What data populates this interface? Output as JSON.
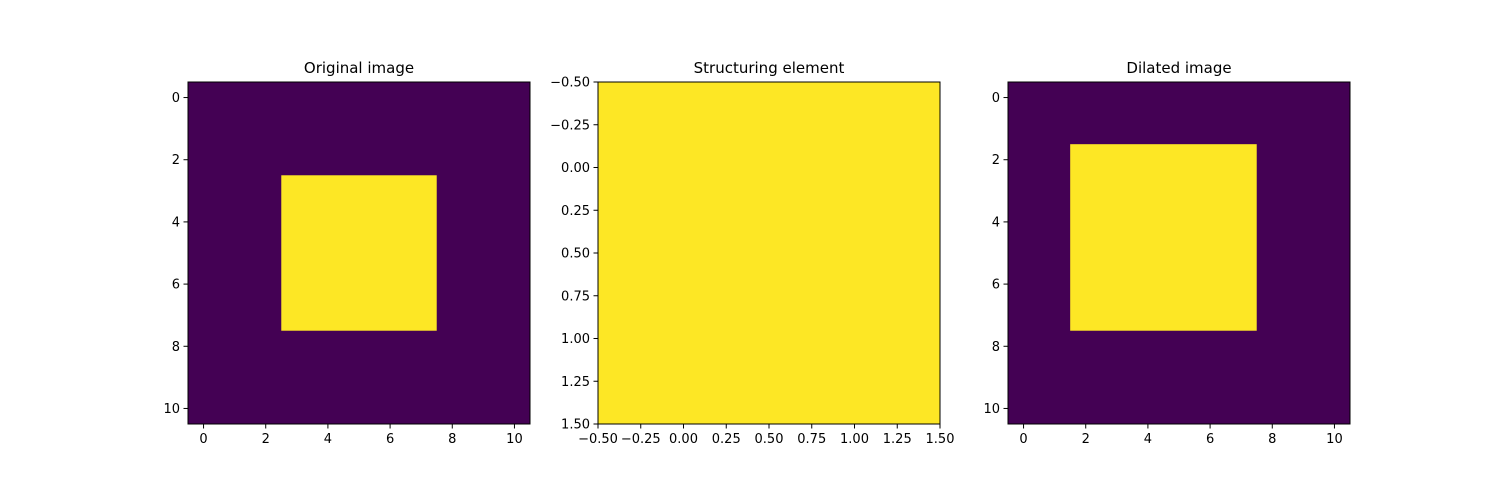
{
  "chart_data": [
    {
      "type": "heatmap",
      "title": "Original image",
      "grid": false,
      "colormap": "viridis",
      "xlim": [
        -0.5,
        10.5
      ],
      "ylim": [
        10.5,
        -0.5
      ],
      "xticks": [
        "0",
        "2",
        "4",
        "6",
        "8",
        "10"
      ],
      "yticks": [
        "0",
        "2",
        "4",
        "6",
        "8",
        "10"
      ],
      "rows": 11,
      "cols": 11,
      "background_value": 0,
      "filled_value": 1,
      "filled_region": {
        "rows": [
          3,
          7
        ],
        "cols": [
          3,
          7
        ]
      }
    },
    {
      "type": "heatmap",
      "title": "Structuring element",
      "grid": false,
      "colormap": "viridis",
      "xlim": [
        -0.5,
        1.5
      ],
      "ylim": [
        1.5,
        -0.5
      ],
      "xticks": [
        "−0.50",
        "−0.25",
        "0.00",
        "0.25",
        "0.50",
        "0.75",
        "1.00",
        "1.25",
        "1.50"
      ],
      "yticks": [
        "−0.50",
        "−0.25",
        "0.00",
        "0.25",
        "0.50",
        "0.75",
        "1.00",
        "1.25",
        "1.50"
      ],
      "rows": 2,
      "cols": 2,
      "background_value": 1,
      "filled_value": 1,
      "filled_region": {
        "rows": [
          0,
          1
        ],
        "cols": [
          0,
          1
        ]
      }
    },
    {
      "type": "heatmap",
      "title": "Dilated image",
      "grid": false,
      "colormap": "viridis",
      "xlim": [
        -0.5,
        10.5
      ],
      "ylim": [
        10.5,
        -0.5
      ],
      "xticks": [
        "0",
        "2",
        "4",
        "6",
        "8",
        "10"
      ],
      "yticks": [
        "0",
        "2",
        "4",
        "6",
        "8",
        "10"
      ],
      "rows": 11,
      "cols": 11,
      "background_value": 0,
      "filled_value": 1,
      "filled_region": {
        "rows": [
          2,
          7
        ],
        "cols": [
          2,
          7
        ]
      }
    }
  ],
  "colors": {
    "low": "#440154",
    "high": "#fde725",
    "axis": "#000000"
  }
}
